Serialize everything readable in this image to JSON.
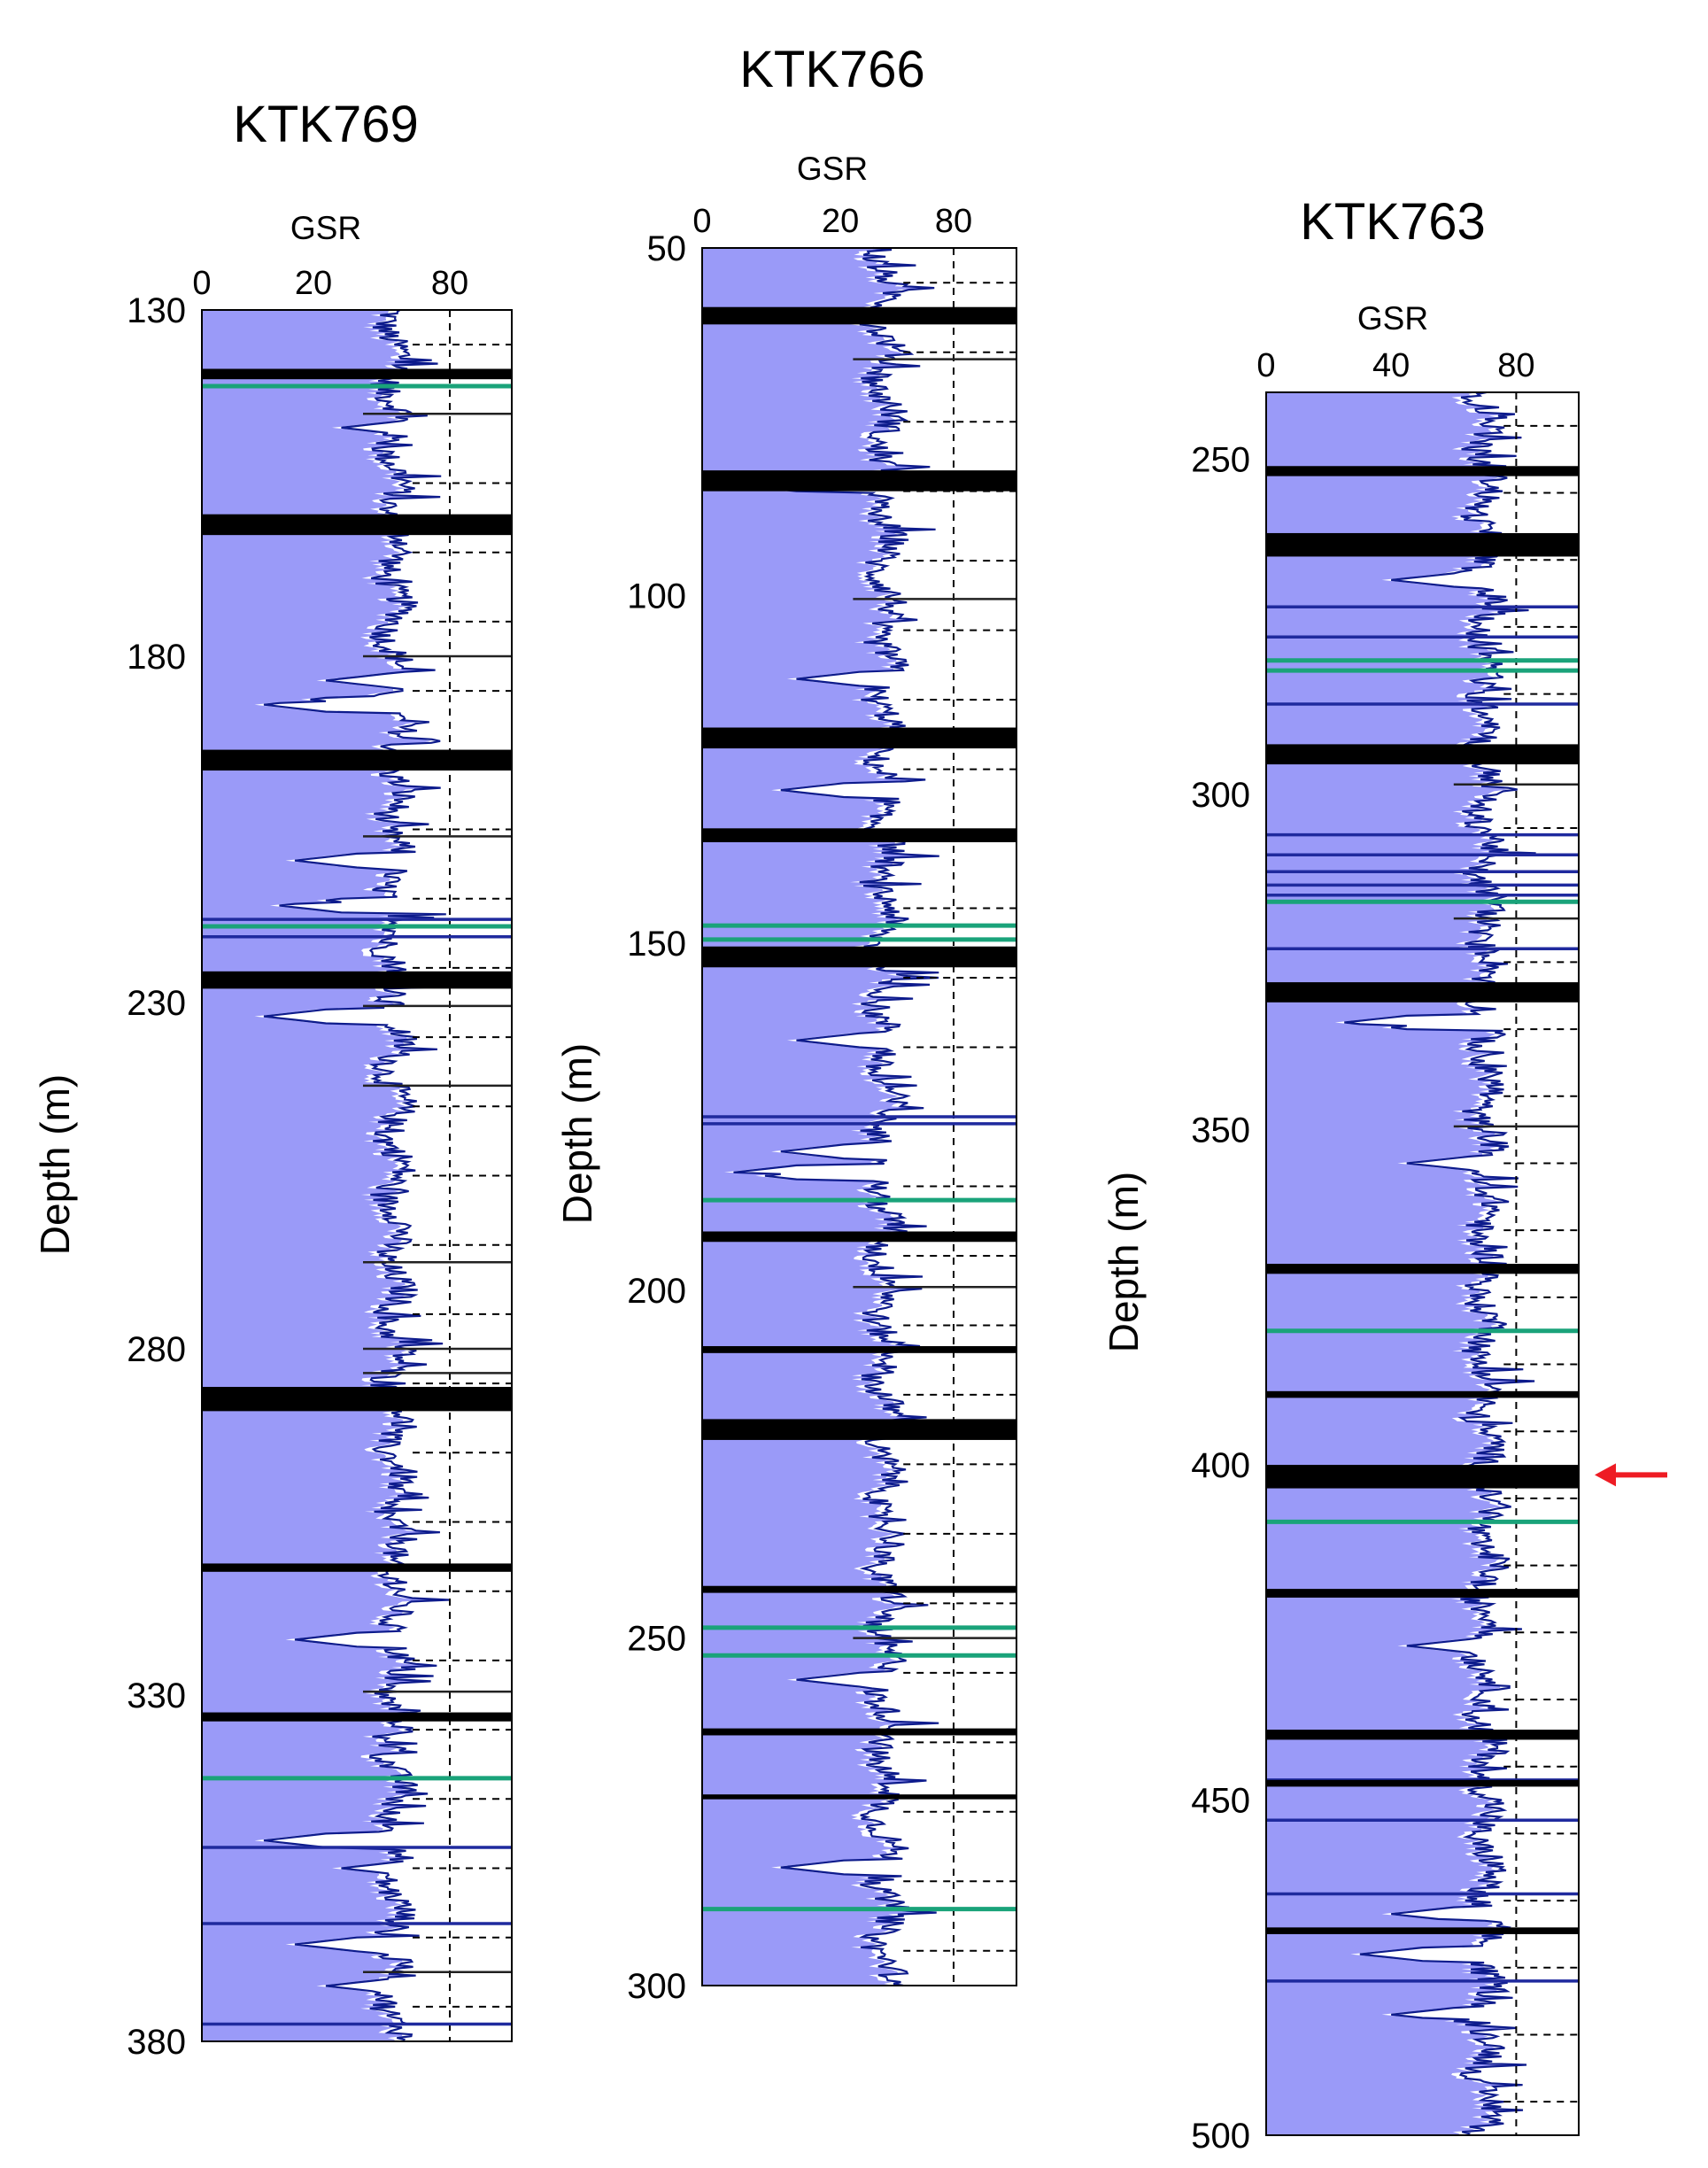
{
  "figure": {
    "arrow_color": "#ee1c24"
  },
  "colors": {
    "fill": "#9a9af8",
    "curve": "#0d1b8c",
    "bed": "#000000",
    "green": "#1aa37a",
    "blue": "#1f2a9e",
    "grid": "#000000"
  },
  "chart_data": [
    {
      "type": "well-log",
      "title": "KTK769",
      "xlabel": "GSR",
      "ylabel": "Depth (m)",
      "xlim": [
        0,
        100
      ],
      "x_ticks": [
        0,
        20,
        80
      ],
      "x_tick_positions": [
        0,
        36,
        80
      ],
      "gridline_x": 80,
      "ylim": [
        130,
        380
      ],
      "y_ticks": [
        130,
        180,
        230,
        280,
        330,
        380
      ],
      "horizontal_grid_step": 10,
      "gsr_baseline": 62,
      "black_beds": [
        [
          138.5,
          140.0
        ],
        [
          159.5,
          162.5
        ],
        [
          193.5,
          196.5
        ],
        [
          225.5,
          228.0
        ],
        [
          285.5,
          289.0
        ],
        [
          311.0,
          312.2
        ],
        [
          332.5,
          333.8
        ]
      ],
      "green_lines": [
        141.0,
        219.0,
        342.0
      ],
      "blue_lines": [
        218.0,
        220.5,
        352.0,
        363.0,
        377.5
      ],
      "thin_lines": [
        145.0,
        180.0,
        206.0,
        230.5,
        242.0,
        267.5,
        280.0,
        283.5,
        329.5,
        370.0
      ],
      "gamma_dips": [
        [
          147.0,
          45
        ],
        [
          183.5,
          40
        ],
        [
          187.0,
          20
        ],
        [
          209.5,
          30
        ],
        [
          216.0,
          25
        ],
        [
          232.0,
          20
        ],
        [
          300.0,
          60
        ],
        [
          322.0,
          30
        ],
        [
          336.0,
          55
        ],
        [
          351.0,
          20
        ],
        [
          355.0,
          45
        ],
        [
          366.0,
          30
        ],
        [
          372.0,
          40
        ]
      ]
    },
    {
      "type": "well-log",
      "title": "KTK766",
      "xlabel": "GSR",
      "ylabel": "Depth (m)",
      "xlim": [
        0,
        100
      ],
      "x_ticks": [
        0,
        20,
        80
      ],
      "x_tick_positions": [
        0,
        44,
        80
      ],
      "gridline_x": 80,
      "ylim": [
        50,
        300
      ],
      "y_ticks": [
        50,
        100,
        150,
        200,
        250,
        300
      ],
      "horizontal_grid_step": 10,
      "gsr_baseline": 58,
      "black_beds": [
        [
          58.5,
          61.0
        ],
        [
          82.0,
          85.0
        ],
        [
          119.0,
          122.0
        ],
        [
          133.5,
          135.5
        ],
        [
          150.5,
          153.5
        ],
        [
          191.5,
          193.0
        ],
        [
          208.0,
          209.0
        ],
        [
          218.5,
          221.5
        ],
        [
          242.5,
          243.5
        ],
        [
          263.0,
          264.0
        ],
        [
          272.5,
          273.2
        ]
      ],
      "green_lines": [
        147.5,
        149.5,
        187.0,
        248.5,
        252.5,
        289.0
      ],
      "blue_lines": [
        175.0,
        176.0
      ],
      "thin_lines": [
        66.0,
        100.5,
        199.5,
        250.0
      ],
      "gamma_dips": [
        [
          84.0,
          10
        ],
        [
          112.0,
          30
        ],
        [
          128.0,
          25
        ],
        [
          164.0,
          30
        ],
        [
          180.0,
          25
        ],
        [
          183.0,
          10
        ],
        [
          256.0,
          30
        ],
        [
          283.0,
          25
        ]
      ]
    },
    {
      "type": "well-log",
      "title": "KTK763",
      "xlabel": "GSR",
      "ylabel": "Depth (m)",
      "xlim": [
        0,
        100
      ],
      "x_ticks": [
        0,
        40,
        80
      ],
      "x_tick_positions": [
        0,
        40,
        80
      ],
      "gridline_x": 80,
      "ylim": [
        240,
        500
      ],
      "y_ticks": [
        250,
        300,
        350,
        400,
        450,
        500
      ],
      "horizontal_grid_step": 10,
      "gsr_baseline": 70,
      "black_beds": [
        [
          251.0,
          252.5
        ],
        [
          261.0,
          264.5
        ],
        [
          292.5,
          295.5
        ],
        [
          328.0,
          331.0
        ],
        [
          370.0,
          371.5
        ],
        [
          389.0,
          390.0
        ],
        [
          400.0,
          403.5
        ],
        [
          418.5,
          419.8
        ],
        [
          439.5,
          441.0
        ],
        [
          447.0,
          448.0
        ],
        [
          469.0,
          470.0
        ]
      ],
      "green_lines": [
        280.0,
        281.5,
        316.0,
        380.0,
        408.5
      ],
      "blue_lines": [
        272.0,
        276.5,
        286.5,
        306.0,
        309.0,
        311.5,
        313.5,
        315.0,
        323.0,
        447.0,
        453.0,
        464.0,
        477.0
      ],
      "thin_lines": [
        298.5,
        318.5,
        349.5
      ],
      "gamma_dips": [
        [
          268.0,
          40
        ],
        [
          334.0,
          25
        ],
        [
          355.0,
          45
        ],
        [
          427.0,
          45
        ],
        [
          467.0,
          40
        ],
        [
          473.0,
          30
        ],
        [
          482.0,
          40
        ]
      ],
      "annotation": {
        "text": "",
        "depth": 401.5,
        "marker": "red-arrow"
      }
    }
  ]
}
